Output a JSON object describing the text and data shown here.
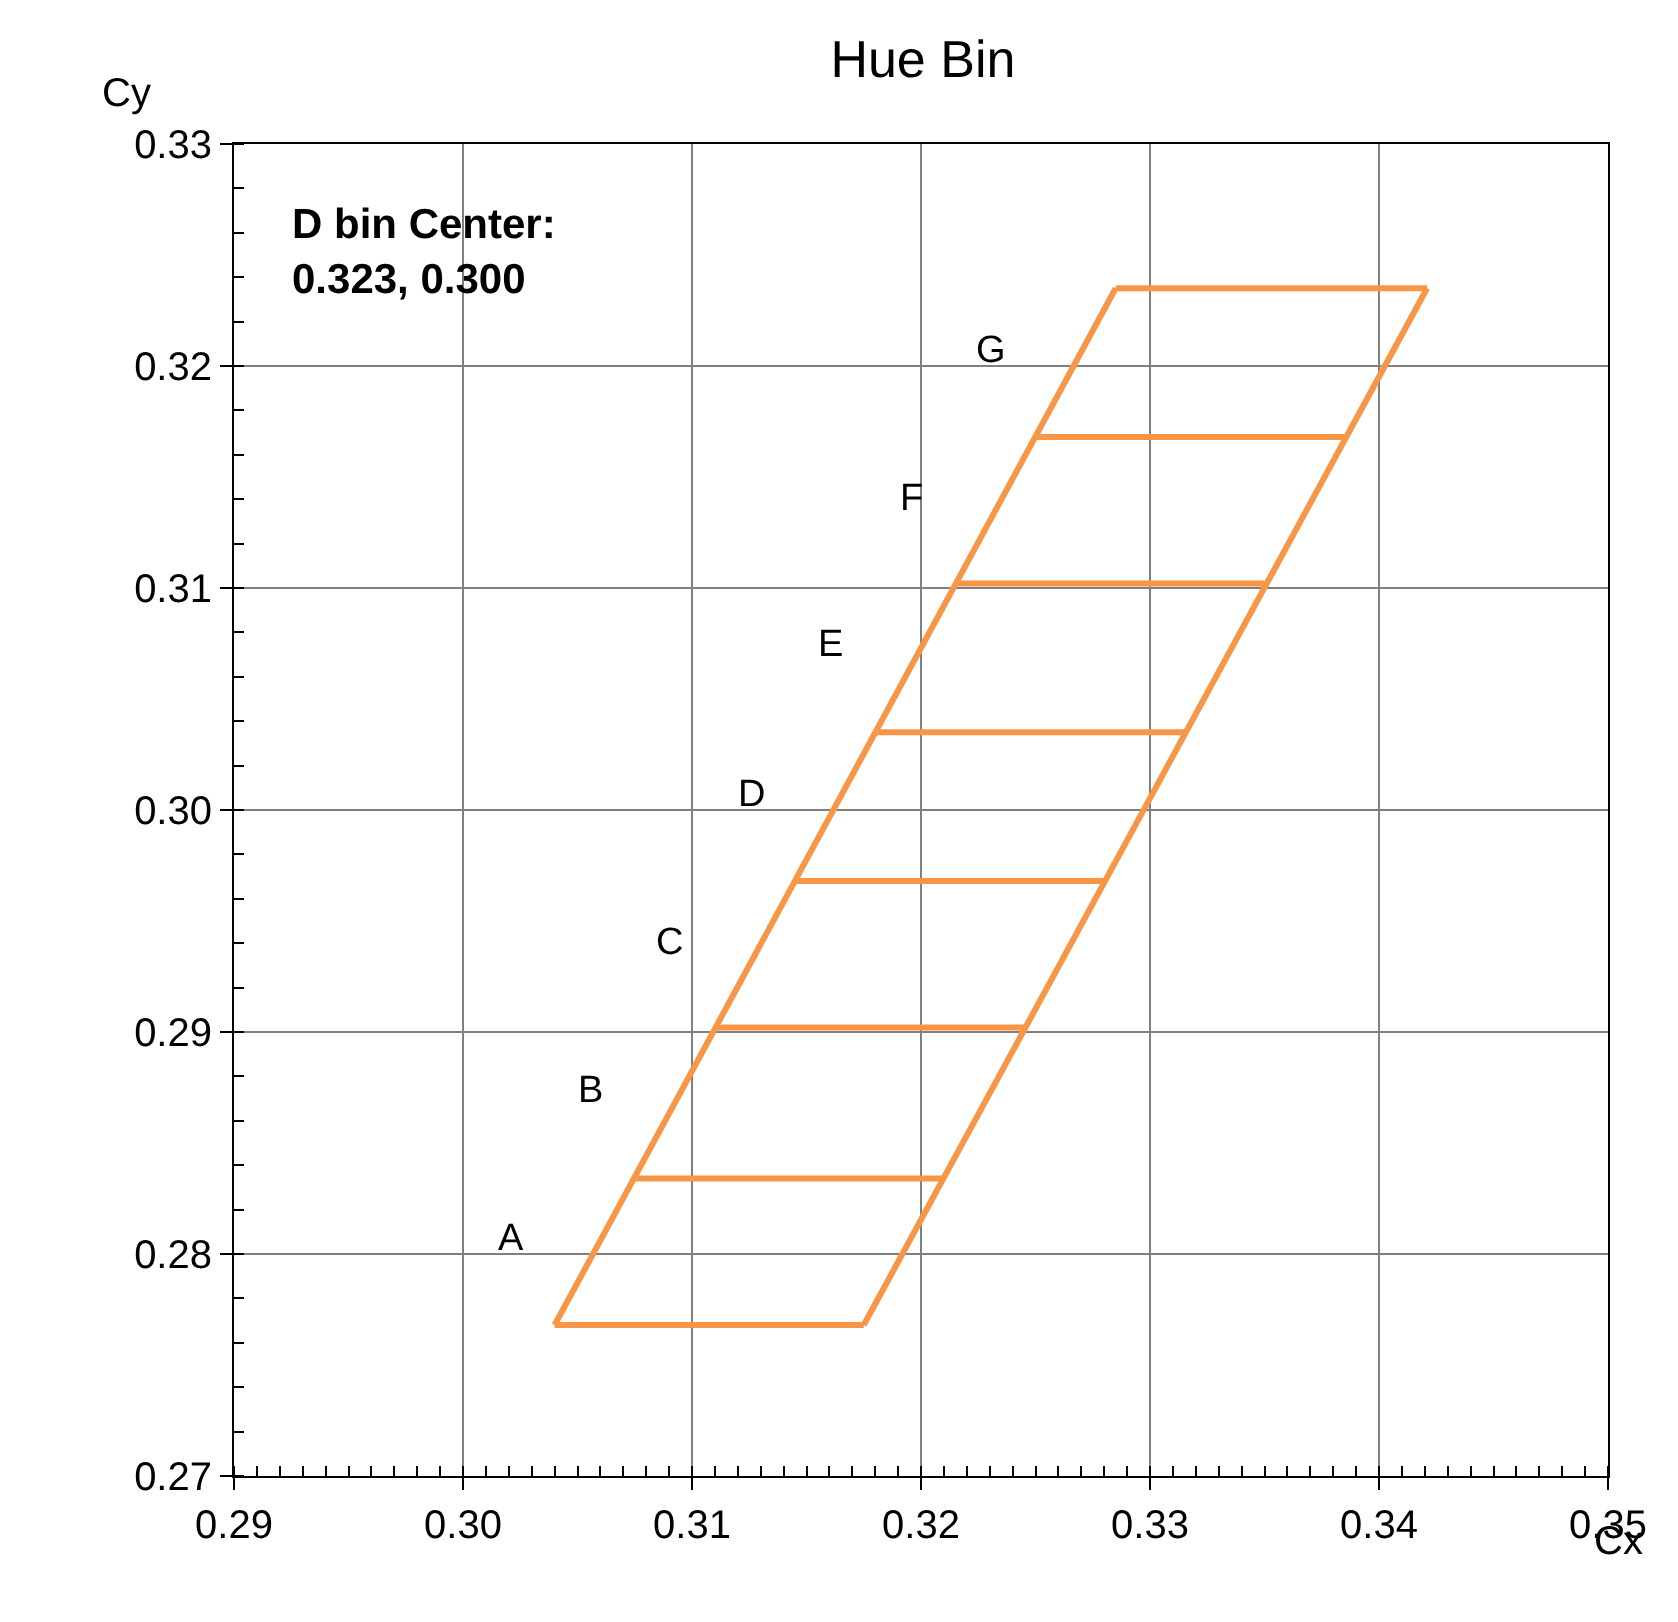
{
  "chart_data": {
    "type": "line",
    "title": "Hue Bin",
    "xlabel": "Cx",
    "ylabel": "Cy",
    "xlim": [
      0.29,
      0.35
    ],
    "xticks": [
      {
        "value": 0.29,
        "label": "0.29"
      },
      {
        "value": 0.3,
        "label": "0.30"
      },
      {
        "value": 0.31,
        "label": "0.31"
      },
      {
        "value": 0.32,
        "label": "0.32"
      },
      {
        "value": 0.33,
        "label": "0.33"
      },
      {
        "value": 0.34,
        "label": "0.34"
      },
      {
        "value": 0.35,
        "label": "0.35"
      }
    ],
    "ylim": [
      0.27,
      0.33
    ],
    "yticks": [
      {
        "value": 0.27,
        "label": "0.27"
      },
      {
        "value": 0.28,
        "label": "0.28"
      },
      {
        "value": 0.29,
        "label": "0.29"
      },
      {
        "value": 0.3,
        "label": "0.30"
      },
      {
        "value": 0.31,
        "label": "0.31"
      },
      {
        "value": 0.32,
        "label": "0.32"
      },
      {
        "value": 0.33,
        "label": "0.33"
      }
    ],
    "grid": true,
    "marker": "none",
    "line_style": "solid",
    "series": [
      {
        "color": "#f79646",
        "x": [
          0.304,
          0.3285
        ],
        "values": [
          0.2768,
          0.3235
        ]
      },
      {
        "color": "#f79646",
        "x": [
          0.3175,
          0.3421
        ],
        "values": [
          0.2768,
          0.3235
        ]
      },
      {
        "color": "#f79646",
        "x": [
          0.304,
          0.3175
        ],
        "values": [
          0.2768,
          0.2768
        ]
      },
      {
        "color": "#f79646",
        "x": [
          0.3075,
          0.321
        ],
        "values": [
          0.2834,
          0.2834
        ]
      },
      {
        "color": "#f79646",
        "x": [
          0.311,
          0.3246
        ],
        "values": [
          0.2902,
          0.2902
        ]
      },
      {
        "color": "#f79646",
        "x": [
          0.3145,
          0.328
        ],
        "values": [
          0.2968,
          0.2968
        ]
      },
      {
        "color": "#f79646",
        "x": [
          0.318,
          0.3315
        ],
        "values": [
          0.3035,
          0.3035
        ]
      },
      {
        "color": "#f79646",
        "x": [
          0.3215,
          0.335
        ],
        "values": [
          0.3102,
          0.3102
        ]
      },
      {
        "color": "#f79646",
        "x": [
          0.325,
          0.3386
        ],
        "values": [
          0.3168,
          0.3168
        ]
      },
      {
        "color": "#f79646",
        "x": [
          0.3285,
          0.3421
        ],
        "values": [
          0.3235,
          0.3235
        ]
      }
    ],
    "annotations": [
      "D bin Center:\n0.323, 0.300",
      "A",
      "B",
      "C",
      "D",
      "E",
      "F",
      "G"
    ]
  }
}
